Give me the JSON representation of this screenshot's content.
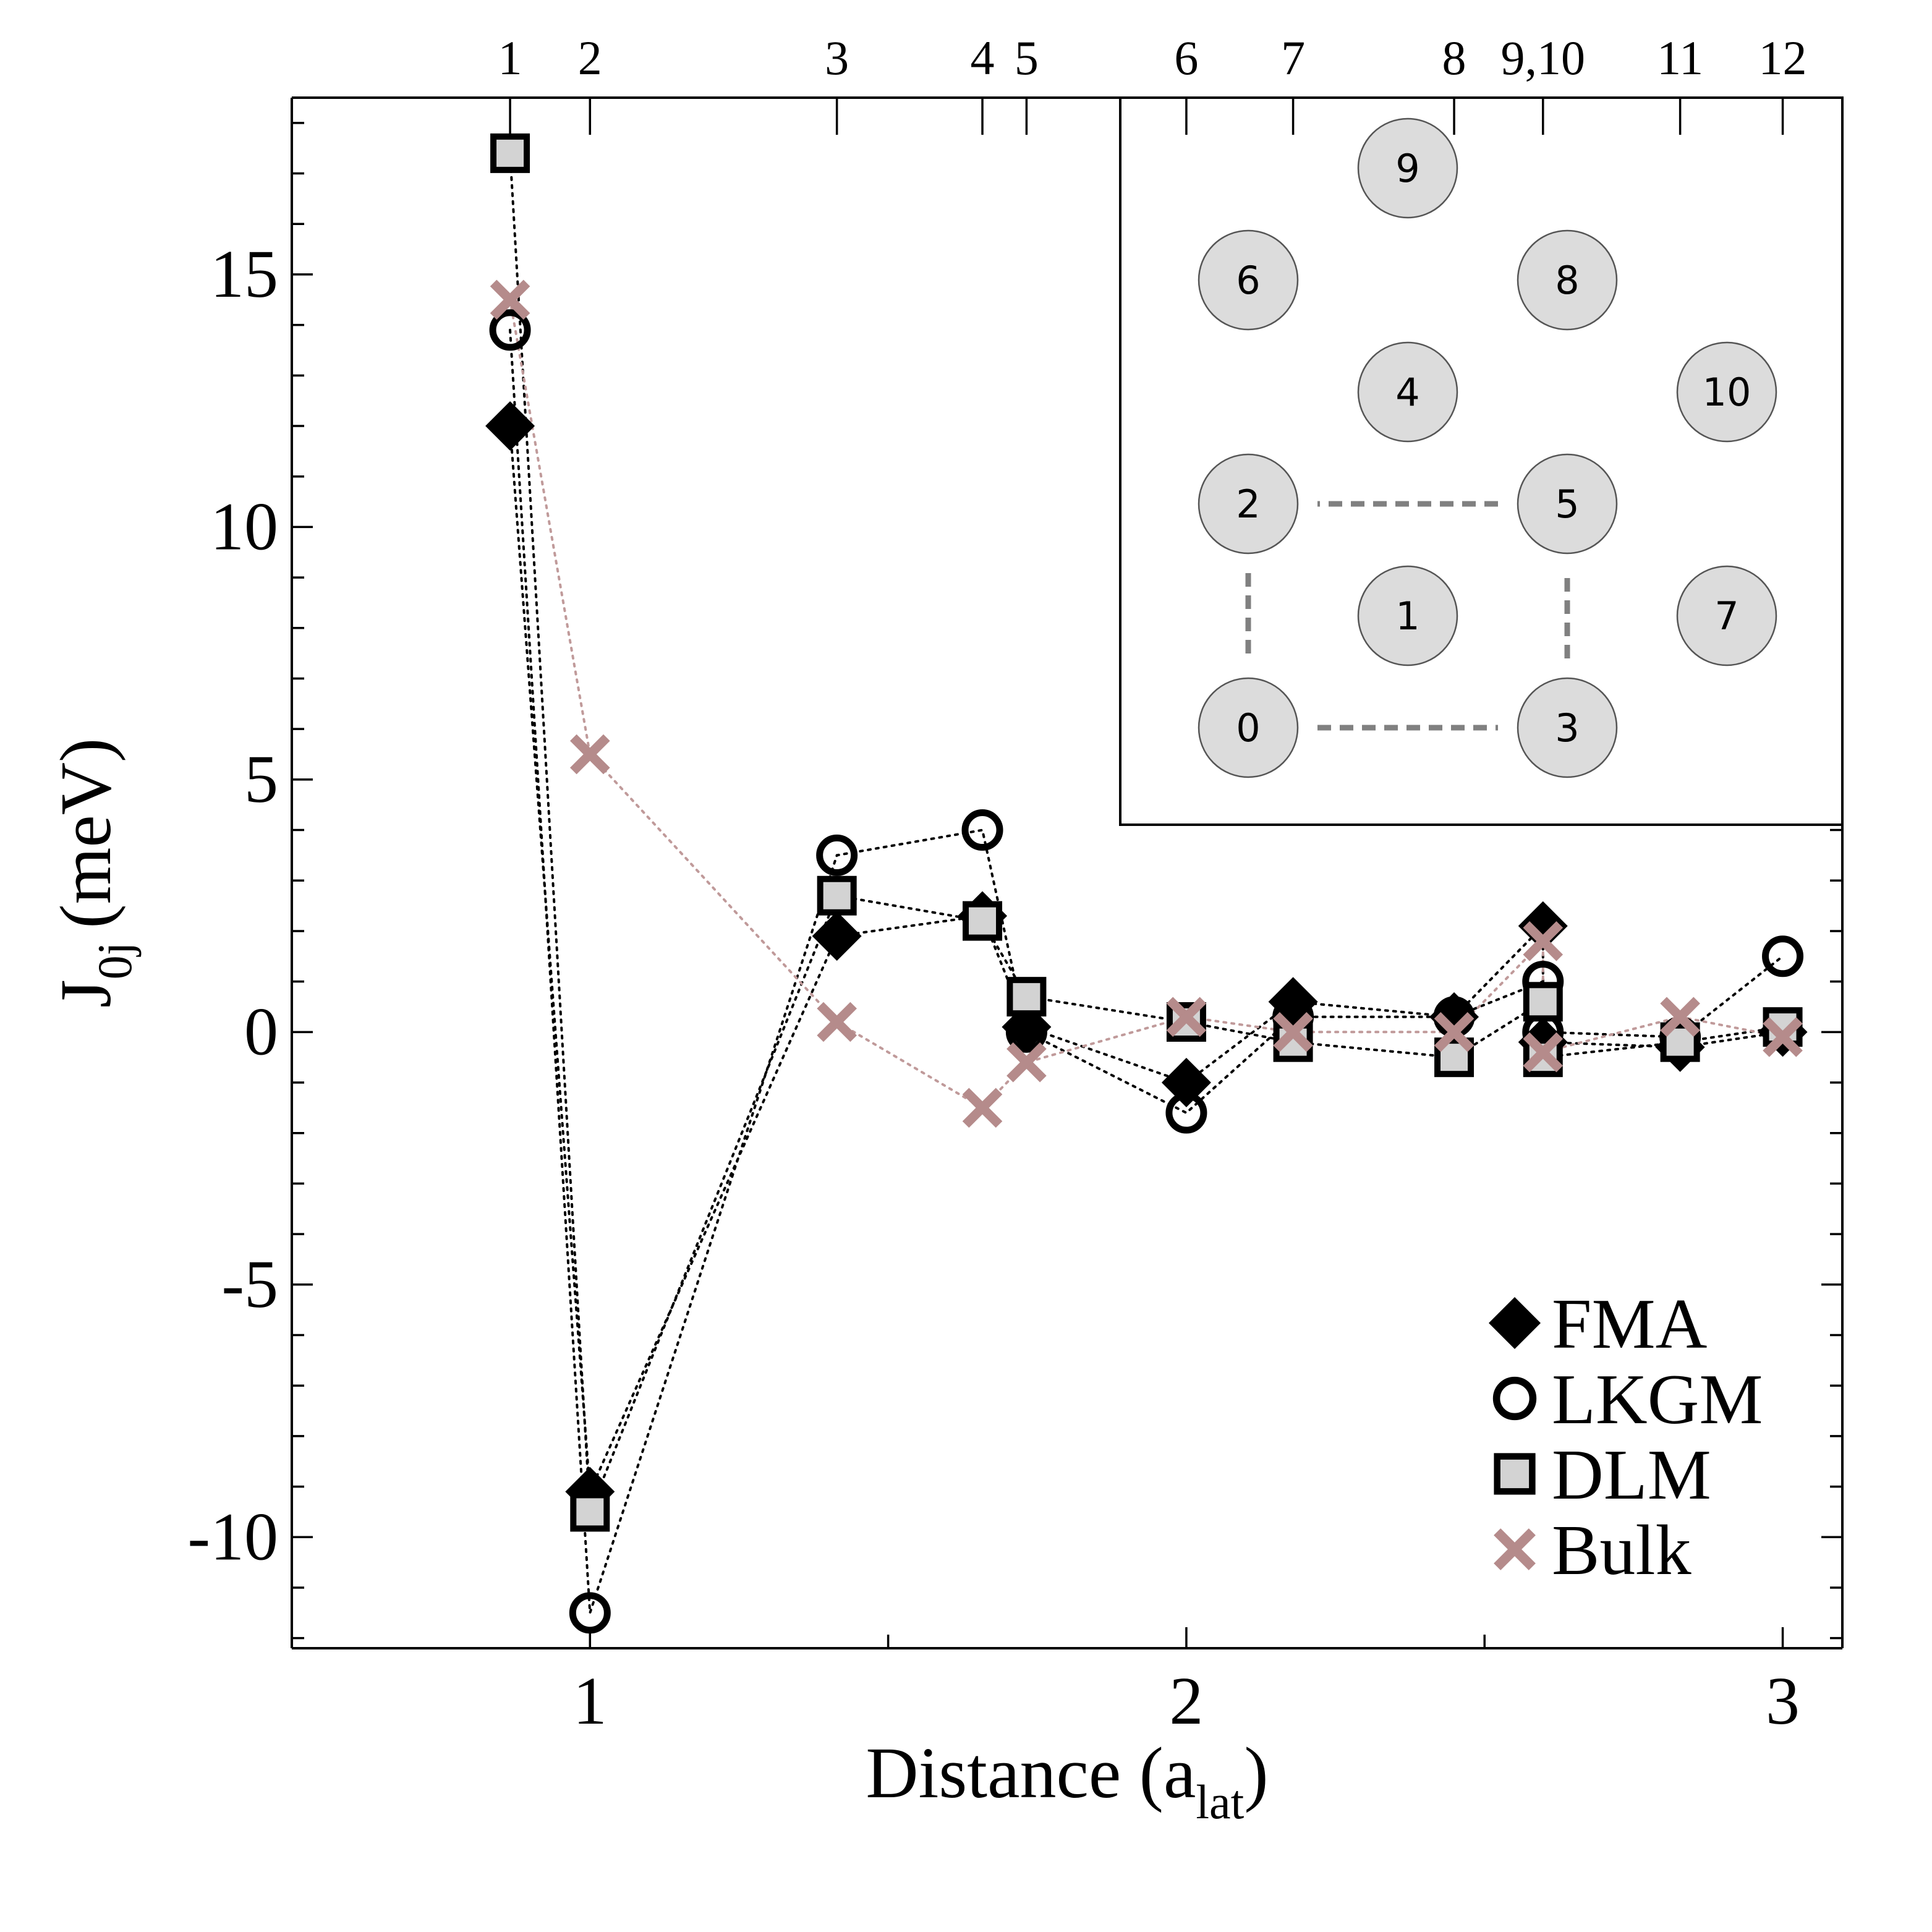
{
  "chart_data": {
    "type": "scatter",
    "title": "",
    "xlabel": "Distance (a",
    "xlabel_sub": "lat",
    "xlabel_tail": ")",
    "ylabel": "J",
    "ylabel_sub": "0j",
    "ylabel_tail": "(meV)",
    "xlim": [
      0.5,
      3.1
    ],
    "ylim": [
      -12.2,
      18.5
    ],
    "xticks": [
      1,
      2,
      3
    ],
    "xtick_labels": [
      "1",
      "2",
      "3"
    ],
    "yticks": [
      -10,
      -5,
      0,
      5,
      10,
      15
    ],
    "ytick_labels": [
      "-10",
      "-5",
      "0",
      "5",
      "10",
      "15"
    ],
    "top_ticks": [
      {
        "label": "1",
        "x": 0.866
      },
      {
        "label": "2",
        "x": 1.0
      },
      {
        "label": "3",
        "x": 1.414
      },
      {
        "label": "4",
        "x": 1.658
      },
      {
        "label": "5",
        "x": 1.732
      },
      {
        "label": "6",
        "x": 2.0
      },
      {
        "label": "7",
        "x": 2.179
      },
      {
        "label": "8",
        "x": 2.449
      },
      {
        "label": "9,10",
        "x": 2.598
      },
      {
        "label": "11",
        "x": 2.828
      },
      {
        "label": "12",
        "x": 3.0
      }
    ],
    "x": [
      0.866,
      1.0,
      1.414,
      1.658,
      1.732,
      2.0,
      2.179,
      2.449,
      2.598,
      2.598,
      2.828,
      3.0
    ],
    "series": [
      {
        "name": "FMA",
        "marker": "diamond",
        "color": "#000000",
        "values": [
          12.0,
          -9.1,
          1.9,
          2.3,
          0.1,
          -1.0,
          0.6,
          0.3,
          2.1,
          -0.2,
          -0.3,
          0.0
        ]
      },
      {
        "name": "LKGM",
        "marker": "circle",
        "color": "#000000",
        "values": [
          13.9,
          -11.5,
          3.5,
          4.0,
          0.0,
          -1.6,
          0.3,
          0.3,
          1.0,
          0.0,
          -0.1,
          1.5
        ]
      },
      {
        "name": "DLM",
        "marker": "square",
        "color": "#000000",
        "values": [
          17.4,
          -9.5,
          2.7,
          2.2,
          0.7,
          0.2,
          -0.2,
          -0.5,
          0.6,
          -0.5,
          -0.2,
          0.1
        ]
      },
      {
        "name": "Bulk",
        "marker": "cross",
        "color": "#b58b8b",
        "values": [
          14.5,
          5.5,
          0.2,
          -1.5,
          -0.6,
          0.3,
          0.0,
          0.0,
          1.8,
          -0.4,
          0.3,
          -0.1
        ]
      }
    ],
    "legend_position": "lower-right",
    "inset": {
      "description_labels": [
        "0",
        "1",
        "2",
        "3",
        "4",
        "5",
        "6",
        "7",
        "8",
        "9",
        "10"
      ],
      "atoms": [
        {
          "label": "0",
          "col": 0,
          "row": 5
        },
        {
          "label": "3",
          "col": 2,
          "row": 5
        },
        {
          "label": "1",
          "col": 1,
          "row": 4
        },
        {
          "label": "7",
          "col": 3,
          "row": 4
        },
        {
          "label": "2",
          "col": 0,
          "row": 3
        },
        {
          "label": "5",
          "col": 2,
          "row": 3
        },
        {
          "label": "4",
          "col": 1,
          "row": 2
        },
        {
          "label": "10",
          "col": 3,
          "row": 2
        },
        {
          "label": "6",
          "col": 0,
          "row": 1
        },
        {
          "label": "8",
          "col": 2,
          "row": 1
        },
        {
          "label": "9",
          "col": 1,
          "row": 0
        }
      ],
      "dashed_square": [
        "0",
        "3",
        "5",
        "2"
      ]
    }
  }
}
